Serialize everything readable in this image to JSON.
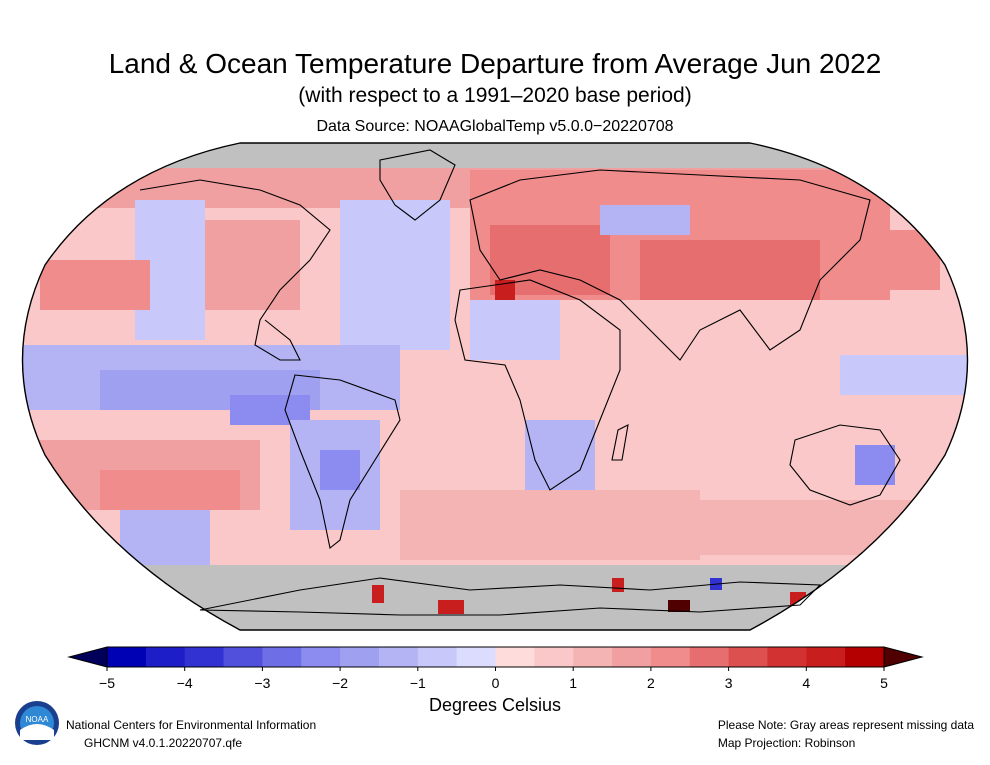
{
  "header": {
    "title": "Land & Ocean Temperature Departure from Average Jun 2022",
    "subtitle": "(with respect to a 1991–2020 base period)",
    "source": "Data Source: NOAAGlobalTemp v5.0.0−20220708"
  },
  "map": {
    "projection": "Robinson",
    "missing_color": "#c0c0c0"
  },
  "colorbar": {
    "title": "Degrees Celsius",
    "ticks": [
      "−5",
      "−4",
      "−3",
      "−2",
      "−1",
      "0",
      "1",
      "2",
      "3",
      "4",
      "5"
    ],
    "range": [
      -5,
      5
    ],
    "colors": [
      "#0000b4",
      "#1e1ec8",
      "#3232d2",
      "#5050dc",
      "#6e6ee6",
      "#8c8cf0",
      "#a0a0f0",
      "#b4b4f5",
      "#c8c8fa",
      "#dcdcff",
      "#ffdcdc",
      "#fac8c8",
      "#f5b4b4",
      "#f0a0a0",
      "#f08c8c",
      "#e66e6e",
      "#dc5050",
      "#d23232",
      "#c81e1e",
      "#b40000"
    ],
    "low_color": "#00005a",
    "high_color": "#500000"
  },
  "footer": {
    "org": "National Centers for Environmental Information",
    "version": "GHCNM v4.0.1.20220707.qfe",
    "note": "Please Note: Gray areas represent missing data",
    "projection": "Map Projection: Robinson",
    "logo_text": "NOAA"
  }
}
